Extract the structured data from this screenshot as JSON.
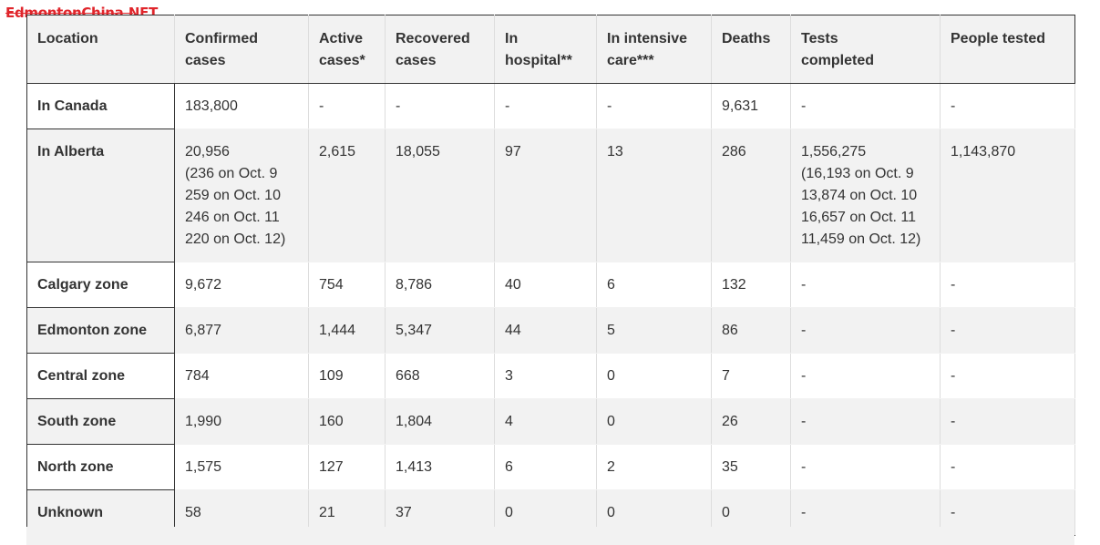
{
  "watermark": "EdmontonChina.NET",
  "table": {
    "headers": [
      [
        "Location"
      ],
      [
        "Confirmed",
        "cases"
      ],
      [
        "Active",
        "cases*"
      ],
      [
        "Recovered",
        "cases"
      ],
      [
        "In",
        "hospital**"
      ],
      [
        "In intensive",
        "care***"
      ],
      [
        "Deaths"
      ],
      [
        "Tests",
        "completed"
      ],
      [
        "People tested"
      ]
    ],
    "rows": [
      {
        "location": "In Canada",
        "confirmed": [
          "183,800"
        ],
        "active": "-",
        "recovered": "-",
        "hospital": "-",
        "icu": "-",
        "deaths": "9,631",
        "tests": [
          "-"
        ],
        "people_tested": "-"
      },
      {
        "location": "In Alberta",
        "confirmed": [
          "20,956",
          "(236 on Oct. 9",
          "259 on Oct. 10",
          "246 on Oct. 11",
          "220 on Oct. 12)"
        ],
        "active": "2,615",
        "recovered": "18,055",
        "hospital": "97",
        "icu": "13",
        "deaths": "286",
        "tests": [
          "1,556,275",
          "(16,193 on Oct. 9",
          "13,874 on Oct. 10",
          "16,657 on Oct. 11",
          "11,459 on Oct. 12)"
        ],
        "people_tested": "1,143,870"
      },
      {
        "location": "Calgary zone",
        "confirmed": [
          "9,672"
        ],
        "active": "754",
        "recovered": "8,786",
        "hospital": "40",
        "icu": "6",
        "deaths": "132",
        "tests": [
          "-"
        ],
        "people_tested": "-"
      },
      {
        "location": "Edmonton zone",
        "confirmed": [
          "6,877"
        ],
        "active": "1,444",
        "recovered": "5,347",
        "hospital": "44",
        "icu": "5",
        "deaths": "86",
        "tests": [
          "-"
        ],
        "people_tested": "-"
      },
      {
        "location": "Central zone",
        "confirmed": [
          "784"
        ],
        "active": "109",
        "recovered": "668",
        "hospital": "3",
        "icu": "0",
        "deaths": "7",
        "tests": [
          "-"
        ],
        "people_tested": "-"
      },
      {
        "location": "South zone",
        "confirmed": [
          "1,990"
        ],
        "active": "160",
        "recovered": "1,804",
        "hospital": "4",
        "icu": "0",
        "deaths": "26",
        "tests": [
          "-"
        ],
        "people_tested": "-"
      },
      {
        "location": "North zone",
        "confirmed": [
          "1,575"
        ],
        "active": "127",
        "recovered": "1,413",
        "hospital": "6",
        "icu": "2",
        "deaths": "35",
        "tests": [
          "-"
        ],
        "people_tested": "-"
      },
      {
        "location": "Unknown",
        "confirmed": [
          "58"
        ],
        "active": "21",
        "recovered": "37",
        "hospital": "0",
        "icu": "0",
        "deaths": "0",
        "tests": [
          "-"
        ],
        "people_tested": "-"
      }
    ]
  },
  "colors": {
    "watermark": "#e0252b",
    "header_background": "#f2f2f2",
    "stripe_background": "#f2f2f2",
    "border_dark": "#333333",
    "text": "#333333"
  }
}
